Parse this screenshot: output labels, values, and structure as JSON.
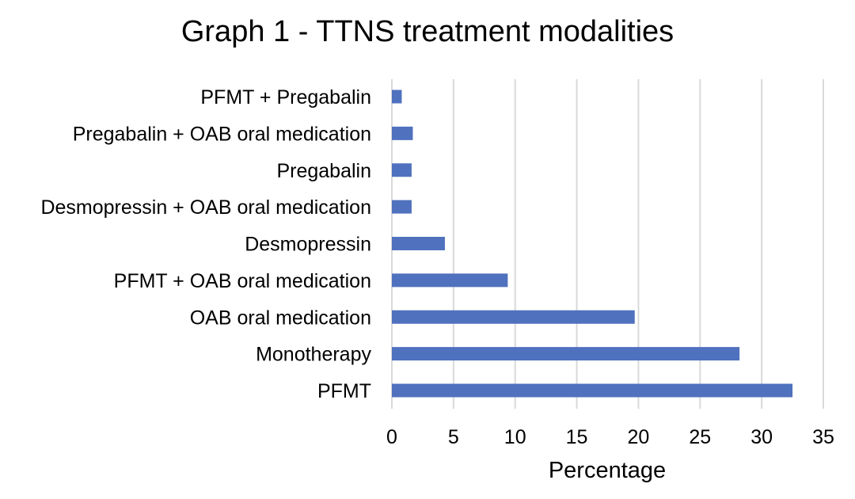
{
  "chart_data": {
    "type": "bar",
    "orientation": "horizontal",
    "title": "Graph 1 - TTNS treatment modalities",
    "xlabel": "Percentage",
    "ylabel": "",
    "categories": [
      "PFMT + Pregabalin",
      "Pregabalin + OAB oral medication",
      "Pregabalin",
      "Desmopressin + OAB oral medication",
      "Desmopressin",
      "PFMT + OAB oral medication",
      "OAB oral medication",
      "Monotherapy",
      "PFMT"
    ],
    "values": [
      0.8,
      1.7,
      1.6,
      1.6,
      4.3,
      9.4,
      19.7,
      28.2,
      32.5
    ],
    "xlim": [
      0,
      35
    ],
    "xticks": [
      0,
      5,
      10,
      15,
      20,
      25,
      30,
      35
    ],
    "grid": true,
    "legend": "none",
    "bar_color": "#4f71be"
  }
}
